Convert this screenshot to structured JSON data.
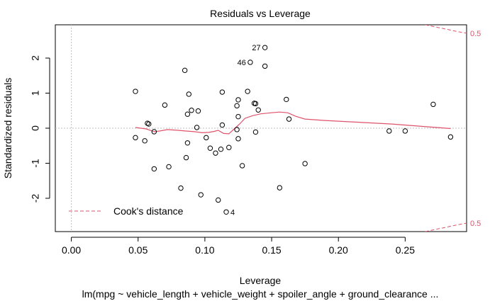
{
  "chart_data": {
    "type": "scatter",
    "title": "Residuals vs Leverage",
    "xlabel": "Leverage",
    "ylabel": "Standardized residuals",
    "subtitle": "lm(mpg ~ vehicle_length + vehicle_weight + spoiler_angle + ground_clearance ...",
    "xlim": [
      -0.012,
      0.296
    ],
    "ylim": [
      -2.95,
      2.95
    ],
    "x_ticks": [
      0.0,
      0.05,
      0.1,
      0.15,
      0.2,
      0.25
    ],
    "x_tick_labels": [
      "0.00",
      "0.05",
      "0.10",
      "0.15",
      "0.20",
      "0.25"
    ],
    "y_ticks": [
      -2,
      -1,
      0,
      1,
      2
    ],
    "y_tick_labels": [
      "-2",
      "-1",
      "0",
      "1",
      "2"
    ],
    "grid": false,
    "reference_lines": {
      "x": 0,
      "y": 0,
      "style": "dotted",
      "color": "#bebebe"
    },
    "points": [
      {
        "x": 0.048,
        "y": 1.05
      },
      {
        "x": 0.048,
        "y": -0.27
      },
      {
        "x": 0.055,
        "y": -0.36
      },
      {
        "x": 0.057,
        "y": 0.14
      },
      {
        "x": 0.058,
        "y": 0.12
      },
      {
        "x": 0.062,
        "y": -0.1
      },
      {
        "x": 0.062,
        "y": -1.16
      },
      {
        "x": 0.07,
        "y": 0.66
      },
      {
        "x": 0.073,
        "y": -1.1
      },
      {
        "x": 0.082,
        "y": -1.71
      },
      {
        "x": 0.085,
        "y": 1.65
      },
      {
        "x": 0.086,
        "y": -0.84
      },
      {
        "x": 0.087,
        "y": 0.4
      },
      {
        "x": 0.087,
        "y": -0.42
      },
      {
        "x": 0.088,
        "y": 0.97
      },
      {
        "x": 0.09,
        "y": 0.51
      },
      {
        "x": 0.094,
        "y": 0.02
      },
      {
        "x": 0.095,
        "y": 0.49
      },
      {
        "x": 0.097,
        "y": -1.9
      },
      {
        "x": 0.101,
        "y": -0.27
      },
      {
        "x": 0.104,
        "y": -0.57
      },
      {
        "x": 0.108,
        "y": -0.71
      },
      {
        "x": 0.11,
        "y": -2.05
      },
      {
        "x": 0.112,
        "y": -0.6
      },
      {
        "x": 0.113,
        "y": 1.03
      },
      {
        "x": 0.113,
        "y": 0.09
      },
      {
        "x": 0.116,
        "y": -2.39
      },
      {
        "x": 0.118,
        "y": -0.55
      },
      {
        "x": 0.124,
        "y": 0.64
      },
      {
        "x": 0.124,
        "y": -0.04
      },
      {
        "x": 0.125,
        "y": 0.81
      },
      {
        "x": 0.125,
        "y": 0.33
      },
      {
        "x": 0.125,
        "y": -0.3
      },
      {
        "x": 0.128,
        "y": -1.07
      },
      {
        "x": 0.132,
        "y": 1.05
      },
      {
        "x": 0.134,
        "y": 1.88
      },
      {
        "x": 0.137,
        "y": 0.71
      },
      {
        "x": 0.138,
        "y": 0.7
      },
      {
        "x": 0.138,
        "y": -0.11
      },
      {
        "x": 0.14,
        "y": 0.52
      },
      {
        "x": 0.145,
        "y": 2.3
      },
      {
        "x": 0.145,
        "y": 1.77
      },
      {
        "x": 0.156,
        "y": -1.7
      },
      {
        "x": 0.161,
        "y": 0.82
      },
      {
        "x": 0.163,
        "y": 0.26
      },
      {
        "x": 0.175,
        "y": -1.01
      },
      {
        "x": 0.238,
        "y": -0.08
      },
      {
        "x": 0.25,
        "y": -0.08
      },
      {
        "x": 0.271,
        "y": 0.68
      },
      {
        "x": 0.284,
        "y": -0.25
      }
    ],
    "point_labels": [
      {
        "text": "27",
        "x": 0.145,
        "y": 2.3,
        "side": "left"
      },
      {
        "text": "46",
        "x": 0.134,
        "y": 1.88,
        "side": "left"
      },
      {
        "text": "4",
        "x": 0.116,
        "y": -2.39,
        "side": "right"
      }
    ],
    "smoother": {
      "color": "#df536b",
      "x": [
        0.048,
        0.056,
        0.062,
        0.066,
        0.072,
        0.08,
        0.086,
        0.092,
        0.098,
        0.103,
        0.107,
        0.11,
        0.114,
        0.118,
        0.122,
        0.126,
        0.13,
        0.136,
        0.142,
        0.15,
        0.156,
        0.162,
        0.168,
        0.175,
        0.19,
        0.21,
        0.24,
        0.284
      ],
      "y": [
        0.02,
        -0.02,
        -0.1,
        -0.08,
        -0.04,
        -0.06,
        -0.08,
        -0.1,
        -0.13,
        -0.12,
        -0.09,
        -0.06,
        -0.15,
        -0.16,
        -0.02,
        0.12,
        0.28,
        0.36,
        0.41,
        0.44,
        0.46,
        0.44,
        0.34,
        0.26,
        0.22,
        0.18,
        0.12,
        -0.01
      ]
    },
    "cooks_distance": {
      "color": "#df536b",
      "level_label": "0.5",
      "upper": {
        "x": [
          0.265,
          0.27,
          0.275,
          0.28,
          0.285,
          0.29,
          0.296
        ],
        "y": [
          2.95,
          2.91,
          2.87,
          2.83,
          2.79,
          2.75,
          2.71
        ]
      },
      "lower": {
        "x": [
          0.265,
          0.27,
          0.275,
          0.28,
          0.285,
          0.29,
          0.296
        ],
        "y": [
          -2.95,
          -2.91,
          -2.87,
          -2.83,
          -2.79,
          -2.75,
          -2.71
        ]
      }
    },
    "legend": {
      "text": "Cook's distance",
      "placement": "bottom-left",
      "line_style": "dashed",
      "color": "#df536b"
    }
  }
}
